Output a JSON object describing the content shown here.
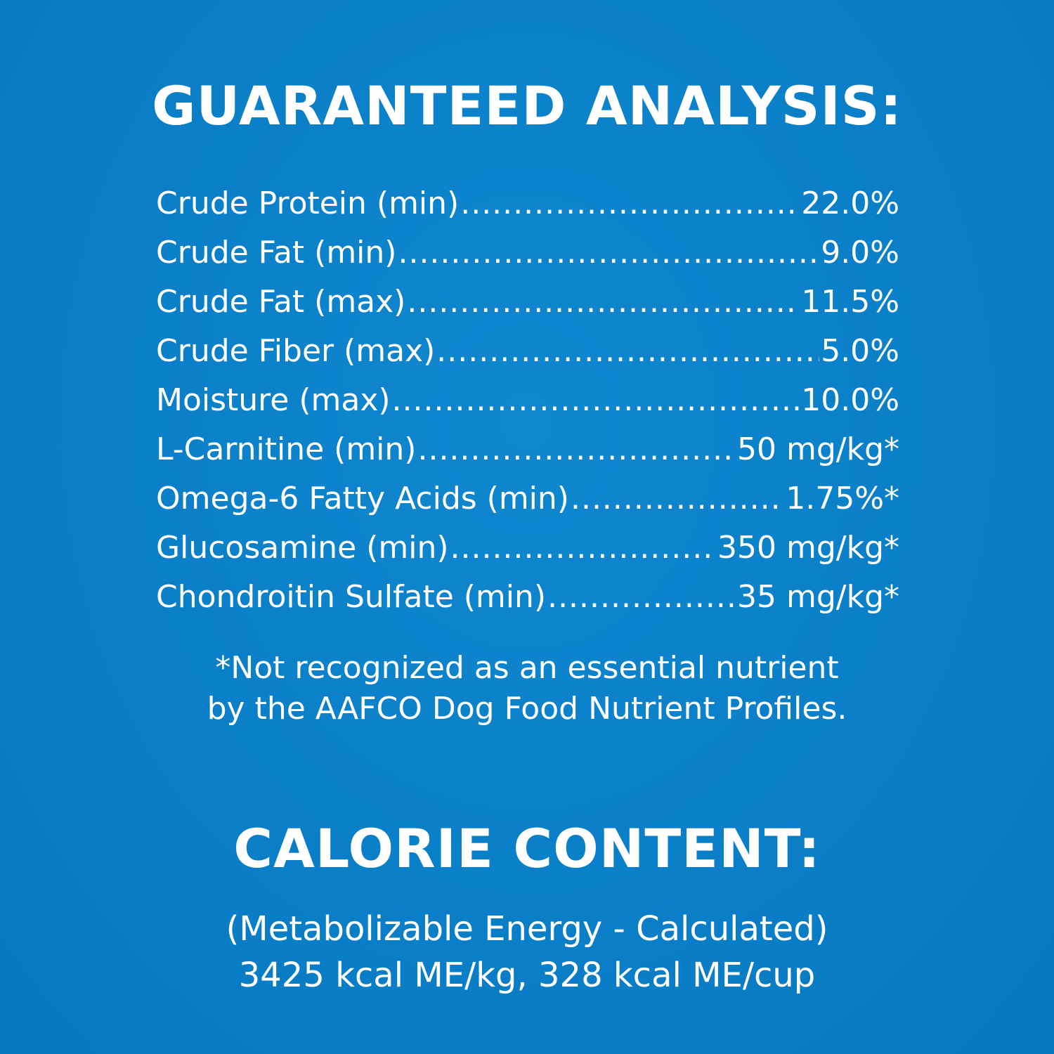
{
  "analysis": {
    "heading": "GUARANTEED ANALYSIS:",
    "rows": [
      {
        "label": "Crude Protein (min)",
        "value": "22.0%"
      },
      {
        "label": "Crude Fat (min)",
        "value": "9.0%"
      },
      {
        "label": "Crude Fat (max)",
        "value": "11.5%"
      },
      {
        "label": "Crude Fiber (max)",
        "value": "5.0%"
      },
      {
        "label": "Moisture (max)",
        "value": "10.0%"
      },
      {
        "label": "L-Carnitine (min)",
        "value": "50 mg/kg*"
      },
      {
        "label": "Omega-6 Fatty Acids (min)",
        "value": "1.75%*"
      },
      {
        "label": "Glucosamine (min)",
        "value": "350 mg/kg*"
      },
      {
        "label": "Chondroitin Sulfate (min)",
        "value": "35 mg/kg*"
      }
    ],
    "footnote_line1": "*Not recognized as an essential nutrient",
    "footnote_line2": "by the AAFCO Dog Food Nutrient Profiles."
  },
  "calorie": {
    "heading": "CALORIE CONTENT:",
    "line1": "(Metabolizable Energy - Calculated)",
    "line2": "3425 kcal ME/kg, 328 kcal ME/cup"
  },
  "colors": {
    "background": "#0a7fc8",
    "text": "#ffffff"
  }
}
